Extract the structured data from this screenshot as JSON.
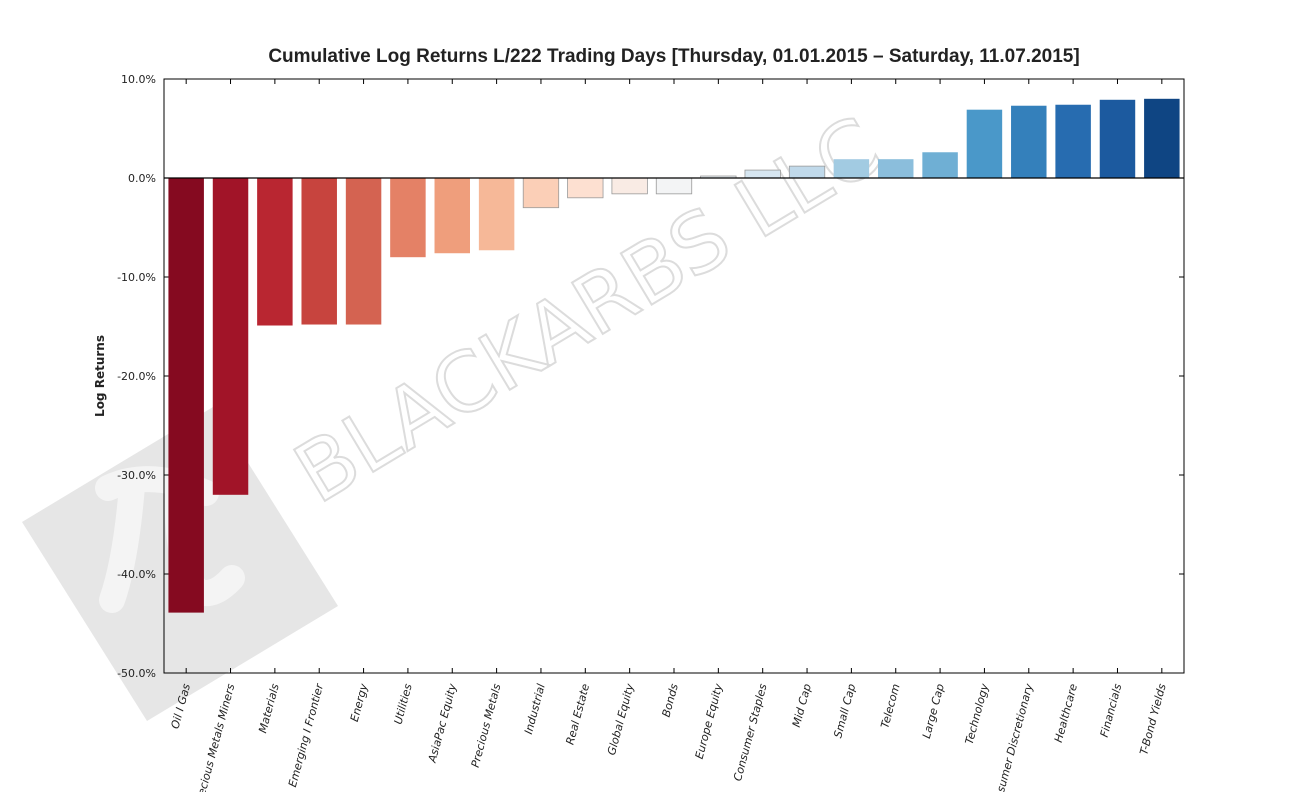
{
  "watermark": {
    "text": "BLACKARBS LLC",
    "logo_icon": "pi-logo-icon"
  },
  "chart_data": {
    "type": "bar",
    "title": "Cumulative Log Returns L/222 Trading Days  [Thursday, 01.01.2015 – Saturday, 11.07.2015]",
    "xlabel": "",
    "ylabel": "Log Returns",
    "ylim": [
      -50,
      10
    ],
    "yticks": [
      10,
      0,
      -10,
      -20,
      -30,
      -40,
      -50
    ],
    "ytick_labels": [
      "10.0%",
      "0.0%",
      "-10.0%",
      "-20.0%",
      "-30.0%",
      "-40.0%",
      "-50.0%"
    ],
    "categories": [
      "Oil I Gas",
      "Precious Metals Miners",
      "Materials",
      "Emerging I Frontier",
      "Energy",
      "Utilities",
      "AsiaPac Equity",
      "Precious Metals",
      "Industrial",
      "Real Estate",
      "Global Equity",
      "Bonds",
      "Europe Equity",
      "Consumer Staples",
      "Mid Cap",
      "Small Cap",
      "Telecom",
      "Large Cap",
      "Technology",
      "Consumer Discretionary",
      "Healthcare",
      "Financials",
      "T-Bond Yields"
    ],
    "values": [
      -43.9,
      -32.0,
      -14.9,
      -14.8,
      -14.8,
      -8.0,
      -7.6,
      -7.3,
      -3.0,
      -2.0,
      -1.6,
      -1.6,
      0.2,
      0.8,
      1.2,
      1.9,
      1.9,
      2.6,
      6.9,
      7.3,
      7.4,
      7.9,
      8.0
    ],
    "colors": [
      "#850a20",
      "#a11428",
      "#b92631",
      "#c7443e",
      "#d46351",
      "#e48166",
      "#ef9e7c",
      "#f6b898",
      "#fbcfb7",
      "#fde0d1",
      "#f9ebe4",
      "#f3f4f5",
      "#e9f0f5",
      "#d6e6f1",
      "#c0d9ea",
      "#a2cbe2",
      "#8bbedc",
      "#6fafd4",
      "#4a98c9",
      "#3480bb",
      "#276cb0",
      "#1c5a9f",
      "#0f4583"
    ]
  }
}
